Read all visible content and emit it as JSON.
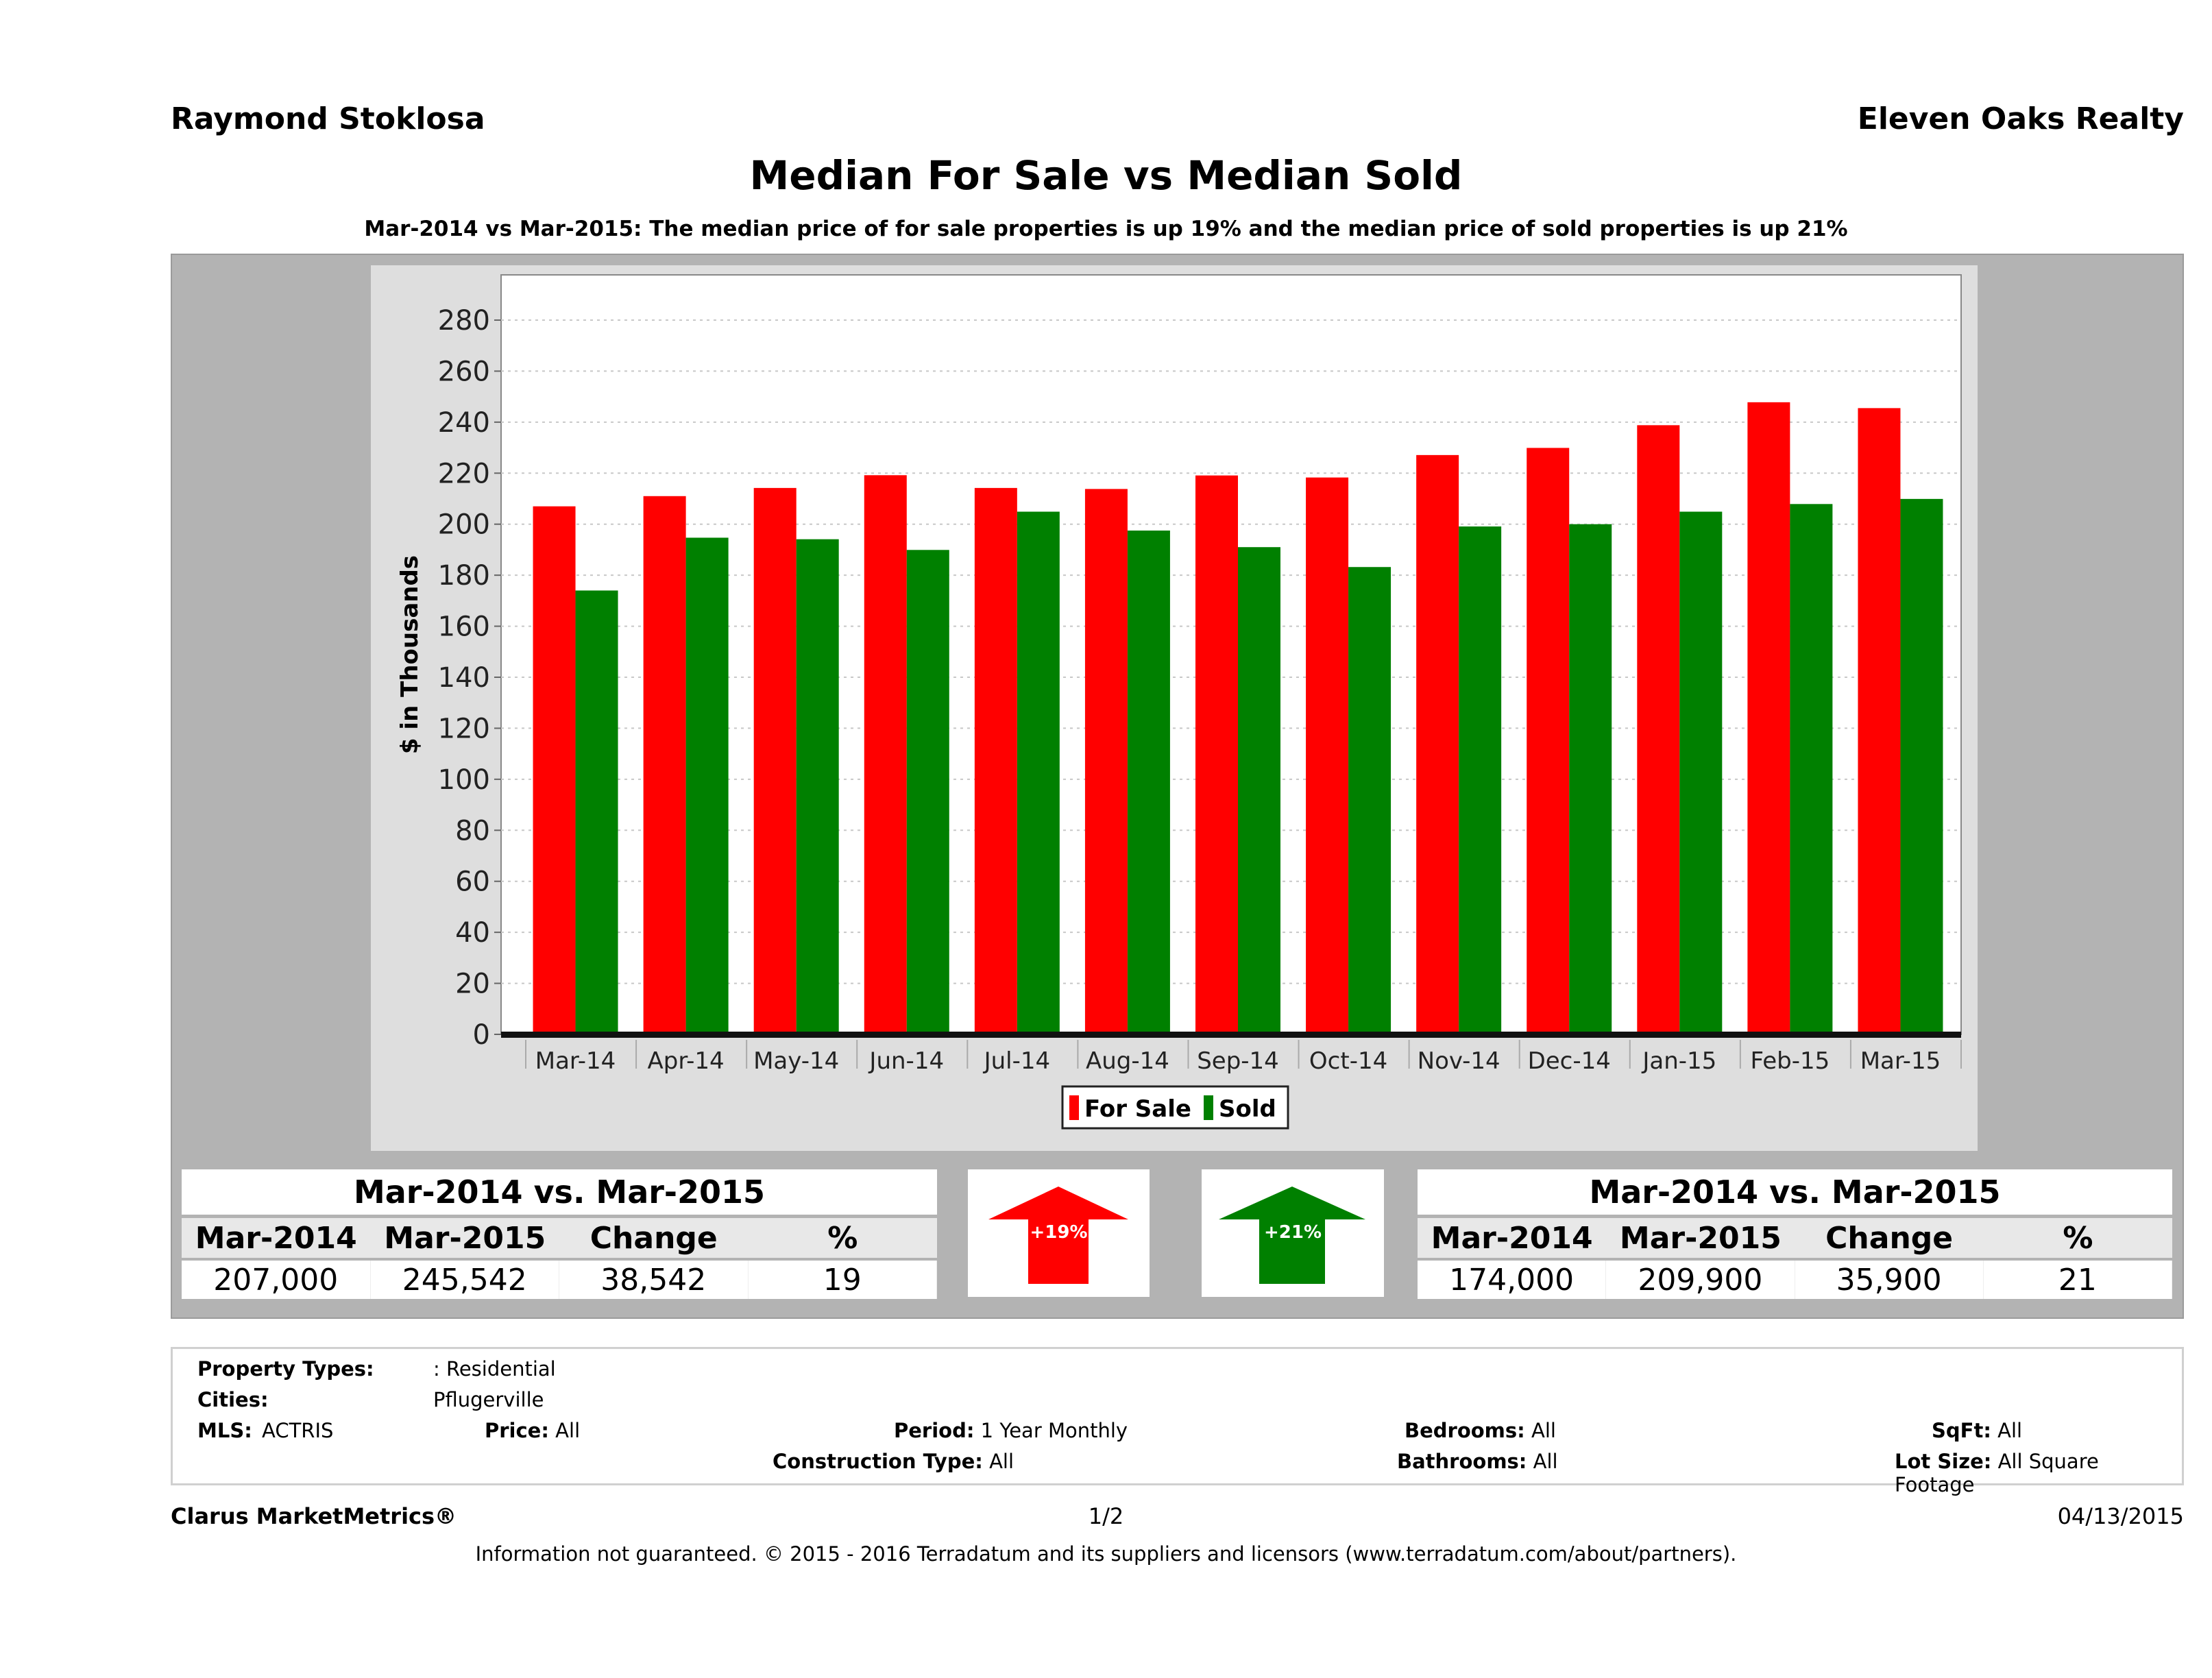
{
  "header": {
    "agent_name": "Raymond Stoklosa",
    "brokerage": "Eleven Oaks Realty"
  },
  "colors": {
    "for_sale": "#ff0000",
    "sold": "#008000",
    "panel_bg": "#b3b3b3",
    "chart_bg": "#dedede"
  },
  "chart_data": {
    "type": "bar",
    "title": "Median For Sale vs Median Sold",
    "subtitle": "Mar-2014 vs Mar-2015: The median price of for sale properties is up 19% and the median price of sold properties is up 21%",
    "xlabel": "",
    "ylabel": "$ in Thousands",
    "ylim": [
      0,
      290
    ],
    "yticks": [
      0,
      20,
      40,
      60,
      80,
      100,
      120,
      140,
      160,
      180,
      200,
      220,
      240,
      260,
      280
    ],
    "grid": true,
    "legend_position": "bottom-center",
    "categories": [
      "Mar-14",
      "Apr-14",
      "May-14",
      "Jun-14",
      "Jul-14",
      "Aug-14",
      "Sep-14",
      "Oct-14",
      "Nov-14",
      "Dec-14",
      "Jan-15",
      "Feb-15",
      "Mar-15"
    ],
    "series": [
      {
        "name": "For Sale",
        "color": "#ff0000",
        "values": [
          207.0,
          211.0,
          214.2,
          219.2,
          214.2,
          213.8,
          219.1,
          218.3,
          227.1,
          229.9,
          238.8,
          247.8,
          245.5
        ]
      },
      {
        "name": "Sold",
        "color": "#008000",
        "values": [
          174.0,
          194.7,
          194.1,
          189.9,
          204.9,
          197.5,
          191.0,
          183.2,
          199.1,
          200.0,
          204.9,
          207.9,
          209.9
        ]
      }
    ]
  },
  "for_sale_summary": {
    "title": "Mar-2014 vs. Mar-2015",
    "headers": [
      "Mar-2014",
      "Mar-2015",
      "Change",
      "%"
    ],
    "values": [
      "207,000",
      "245,542",
      "38,542",
      "19"
    ],
    "arrow_label": "+19%",
    "arrow_direction": "up",
    "arrow_color": "#ff0000"
  },
  "sold_summary": {
    "title": "Mar-2014 vs. Mar-2015",
    "headers": [
      "Mar-2014",
      "Mar-2015",
      "Change",
      "%"
    ],
    "values": [
      "174,000",
      "209,900",
      "35,900",
      "21"
    ],
    "arrow_label": "+21%",
    "arrow_direction": "up",
    "arrow_color": "#008000"
  },
  "filters": {
    "property_types": {
      "label": "Property Types:",
      "value": ": Residential"
    },
    "cities": {
      "label": "Cities:",
      "value": "Pflugerville"
    },
    "mls": {
      "label": "MLS:",
      "value": "ACTRIS"
    },
    "price": {
      "label": "Price:",
      "value": "All"
    },
    "period": {
      "label": "Period:",
      "value": "1 Year Monthly"
    },
    "construction_type": {
      "label": "Construction Type:",
      "value": "All"
    },
    "bedrooms": {
      "label": "Bedrooms:",
      "value": "All"
    },
    "bathrooms": {
      "label": "Bathrooms:",
      "value": "All"
    },
    "sqft": {
      "label": "SqFt:",
      "value": "All"
    },
    "lot_size": {
      "label": "Lot Size:",
      "value": "All Square Footage"
    }
  },
  "footer": {
    "product": "Clarus MarketMetrics®",
    "page": "1/2",
    "date": "04/13/2015",
    "disclaimer": "Information not guaranteed. © 2015 - 2016 Terradatum and its suppliers and licensors (www.terradatum.com/about/partners)."
  }
}
